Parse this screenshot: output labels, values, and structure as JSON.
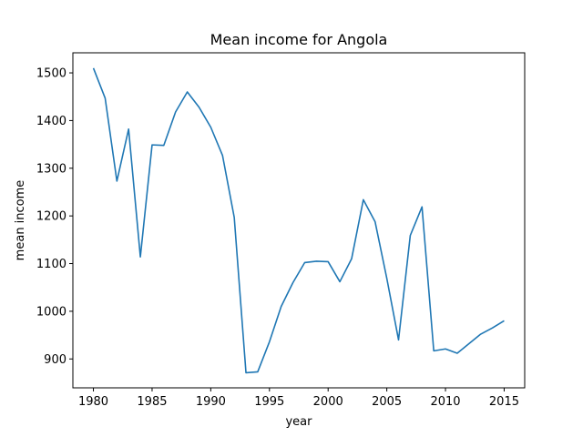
{
  "chart_data": {
    "type": "line",
    "title": "Mean income for Angola",
    "xlabel": "year",
    "ylabel": "mean income",
    "xlim": [
      1978.25,
      2016.75
    ],
    "ylim": [
      839.4,
      1542.1
    ],
    "x_ticks": [
      1980,
      1985,
      1990,
      1995,
      2000,
      2005,
      2010,
      2015
    ],
    "y_ticks": [
      900,
      1000,
      1100,
      1200,
      1300,
      1400,
      1500
    ],
    "grid": false,
    "legend": "none",
    "line_color": "#1f77b4",
    "series": [
      {
        "x": [
          1980,
          1981,
          1982,
          1983,
          1984,
          1985,
          1986,
          1987,
          1988,
          1989,
          1990,
          1991,
          1992,
          1993,
          1994,
          1995,
          1996,
          1997,
          1998,
          1999,
          2000,
          2001,
          2002,
          2003,
          2004,
          2005,
          2006,
          2007,
          2008,
          2009,
          2010,
          2011,
          2012,
          2013,
          2014,
          2015
        ],
        "values": [
          1510,
          1447,
          1273,
          1382,
          1114,
          1349,
          1348,
          1418,
          1460,
          1428,
          1386,
          1327,
          1197,
          871,
          873,
          936,
          1010,
          1060,
          1102,
          1105,
          1104,
          1062,
          1110,
          1234,
          1188,
          1069,
          940,
          1159,
          1219,
          917,
          921,
          912,
          932,
          952,
          965,
          980
        ]
      }
    ]
  }
}
